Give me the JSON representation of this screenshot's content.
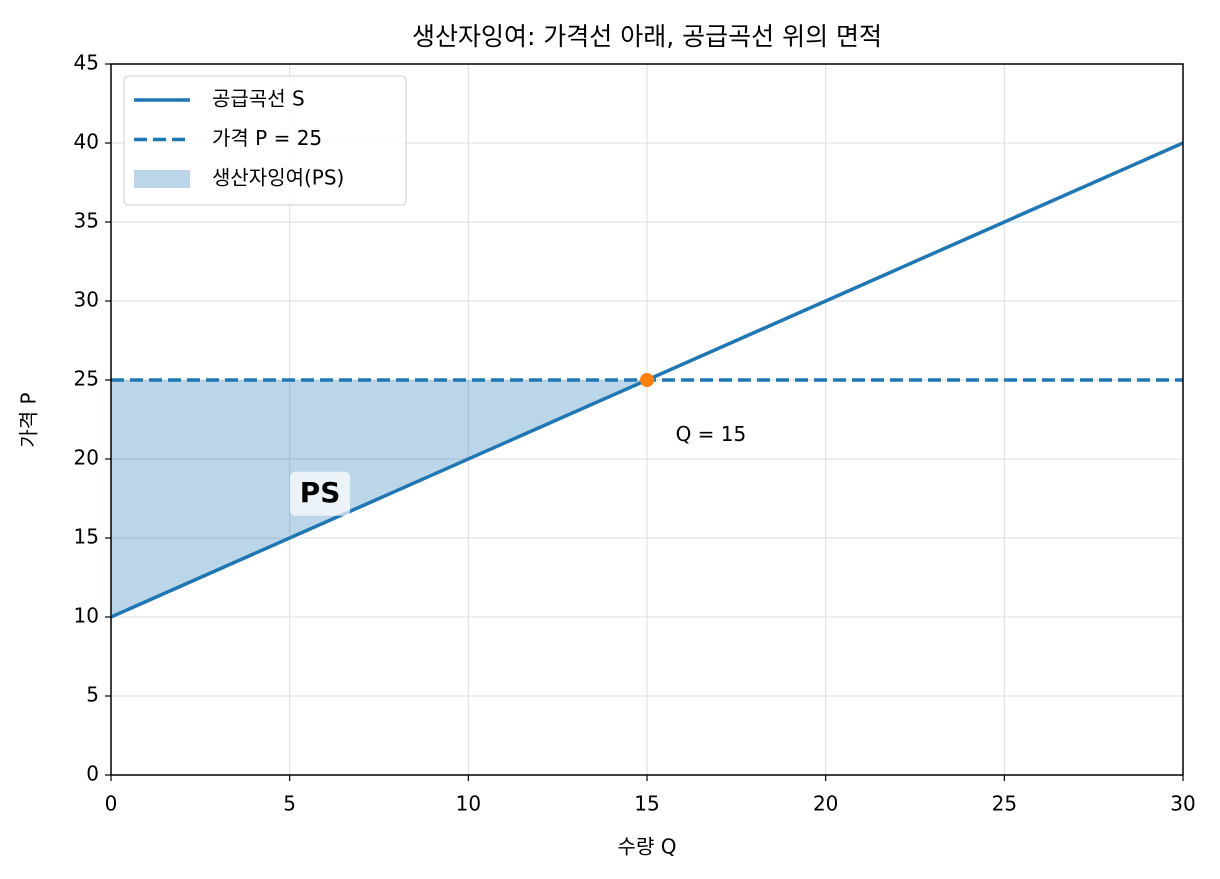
{
  "chart_data": {
    "type": "line",
    "title": "생산자잉여: 가격선 아래, 공급곡선 위의 면적",
    "xlabel": "수량 Q",
    "ylabel": "가격 P",
    "xlim": [
      0,
      30
    ],
    "xticks": [
      0,
      5,
      10,
      15,
      20,
      25,
      30
    ],
    "ylim": [
      0,
      45
    ],
    "yticks": [
      0,
      5,
      10,
      15,
      20,
      25,
      30,
      35,
      40,
      45
    ],
    "grid": true,
    "legend": "upper left",
    "series": [
      {
        "name": "공급곡선 S",
        "color": "#1f77b4",
        "style": "solid",
        "x": [
          0,
          30
        ],
        "values": [
          10,
          40
        ]
      },
      {
        "name": "가격 P = 25",
        "color": "#1f77b4",
        "style": "dashed",
        "x": [
          0,
          30
        ],
        "values": [
          25,
          25
        ]
      },
      {
        "name": "생산자잉여(PS)",
        "color": "#1f77b4",
        "style": "area",
        "x": [
          0,
          15
        ],
        "values": [
          25,
          25
        ],
        "base": [
          10,
          25
        ]
      }
    ],
    "point": {
      "x": 15,
      "y": 25,
      "color": "#ff7f0e"
    },
    "annotations": [
      {
        "text": "Q = 15",
        "x": 15.8,
        "y": 21.5
      },
      {
        "text": "PS",
        "x": 5.85,
        "y": 17.8
      }
    ]
  }
}
